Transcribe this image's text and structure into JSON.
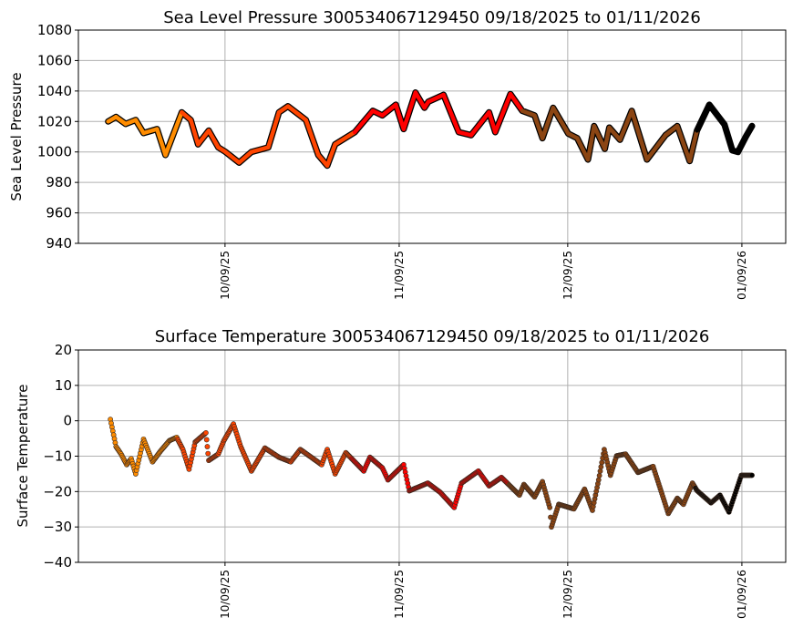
{
  "chart_data": [
    {
      "type": "line",
      "title": "Sea Level Pressure 300534067129450  09/18/2025 to 01/11/2026",
      "xlabel": "",
      "ylabel": "Sea Level Pressure",
      "x_units": "days since 09/18/2025",
      "xlim": [
        -5.1,
        120.8
      ],
      "ylim": [
        940,
        1080
      ],
      "yticks": [
        940,
        960,
        980,
        1000,
        1020,
        1040,
        1060,
        1080
      ],
      "xticks": [
        {
          "day": 21,
          "label": "10/09/25"
        },
        {
          "day": 52,
          "label": "11/09/25"
        },
        {
          "day": 82,
          "label": "12/09/25"
        },
        {
          "day": 113,
          "label": "01/09/26"
        }
      ],
      "grid": true,
      "color_segments": [
        {
          "until_day": 12.5,
          "color": "#ff8c00"
        },
        {
          "until_day": 43.5,
          "color": "#ff4500"
        },
        {
          "until_day": 73,
          "color": "#ff0000"
        },
        {
          "until_day": 104.7,
          "color": "#8b4513"
        },
        {
          "until_day": 999,
          "color": "#000000"
        }
      ],
      "points": [
        [
          0.2,
          1020
        ],
        [
          1.6,
          1023
        ],
        [
          3.3,
          1018.4
        ],
        [
          5.1,
          1021
        ],
        [
          6.5,
          1012.4
        ],
        [
          8.9,
          1015
        ],
        [
          10.4,
          998
        ],
        [
          13.3,
          1026
        ],
        [
          14.9,
          1021
        ],
        [
          16.2,
          1005
        ],
        [
          18.1,
          1014
        ],
        [
          19.8,
          1003
        ],
        [
          21.1,
          1000
        ],
        [
          23.5,
          993
        ],
        [
          25.7,
          1000
        ],
        [
          28.7,
          1003
        ],
        [
          30.6,
          1026
        ],
        [
          32.2,
          1030
        ],
        [
          35.4,
          1021
        ],
        [
          37.6,
          998
        ],
        [
          39.2,
          991
        ],
        [
          40.6,
          1005
        ],
        [
          44.1,
          1013
        ],
        [
          47.3,
          1027
        ],
        [
          49,
          1024
        ],
        [
          51.4,
          1031
        ],
        [
          52.8,
          1015
        ],
        [
          54.9,
          1039
        ],
        [
          56.5,
          1029
        ],
        [
          57.2,
          1033
        ],
        [
          59.9,
          1037.5
        ],
        [
          62.6,
          1013
        ],
        [
          64.8,
          1011
        ],
        [
          68,
          1026
        ],
        [
          69.1,
          1013
        ],
        [
          71.8,
          1038
        ],
        [
          73.9,
          1027
        ],
        [
          76.1,
          1024
        ],
        [
          77.5,
          1009
        ],
        [
          79.4,
          1029
        ],
        [
          82.1,
          1012
        ],
        [
          83.7,
          1009
        ],
        [
          85.6,
          995
        ],
        [
          86.7,
          1017
        ],
        [
          88.6,
          1002
        ],
        [
          89.4,
          1016
        ],
        [
          91.3,
          1008
        ],
        [
          93.4,
          1027
        ],
        [
          96.1,
          995
        ],
        [
          99.4,
          1011
        ],
        [
          101.5,
          1017
        ],
        [
          103.7,
          994
        ],
        [
          105,
          1014
        ],
        [
          107.2,
          1031
        ],
        [
          109.9,
          1018
        ],
        [
          111.3,
          1001
        ],
        [
          112.3,
          1000
        ],
        [
          113.7,
          1010
        ],
        [
          114.8,
          1017
        ]
      ]
    },
    {
      "type": "scatter",
      "title": "Surface Temperature 300534067129450  09/18/2025 to 01/11/2026",
      "xlabel": "",
      "ylabel": "Surface Temperature",
      "x_units": "days since 09/18/2025",
      "xlim": [
        -5.1,
        120.8
      ],
      "ylim": [
        -40,
        20
      ],
      "yticks": [
        -40,
        -30,
        -20,
        -10,
        0,
        10,
        20
      ],
      "ytick_labels": [
        "−40",
        "−30",
        "−20",
        "−10",
        "0",
        "10",
        "20"
      ],
      "xticks": [
        {
          "day": 21,
          "label": "10/09/25"
        },
        {
          "day": 52,
          "label": "11/09/25"
        },
        {
          "day": 82,
          "label": "12/09/25"
        },
        {
          "day": 113,
          "label": "01/09/26"
        }
      ],
      "grid": true,
      "color_segments": [
        {
          "until_day": 12.5,
          "color": "#ff8c00"
        },
        {
          "until_day": 43.5,
          "color": "#ff4500"
        },
        {
          "until_day": 71.5,
          "color": "#ff0000"
        },
        {
          "until_day": 104.7,
          "color": "#8b4513"
        },
        {
          "until_day": 999,
          "color": "#000000"
        }
      ],
      "points": [
        [
          0.6,
          0.4
        ],
        [
          1.6,
          -7.3
        ],
        [
          2.5,
          -9.4
        ],
        [
          3.5,
          -12.4
        ],
        [
          4.3,
          -10.7
        ],
        [
          5.1,
          -15
        ],
        [
          6.5,
          -5.2
        ],
        [
          8.1,
          -11.6
        ],
        [
          9.5,
          -8.6
        ],
        [
          11.1,
          -5.6
        ],
        [
          12.4,
          -4.7
        ],
        [
          13.5,
          -8.1
        ],
        [
          14.6,
          -13.7
        ],
        [
          15.7,
          -6
        ],
        [
          17.6,
          -3.4
        ],
        [
          18.1,
          -11.2
        ],
        [
          19.8,
          -9.4
        ],
        [
          20.8,
          -5.6
        ],
        [
          22.5,
          -0.9
        ],
        [
          23.8,
          -7.3
        ],
        [
          25.7,
          -14.2
        ],
        [
          28.1,
          -7.7
        ],
        [
          30.6,
          -10.3
        ],
        [
          32.7,
          -11.6
        ],
        [
          34.4,
          -8.1
        ],
        [
          38.2,
          -12.4
        ],
        [
          39.2,
          -8.1
        ],
        [
          40.6,
          -15
        ],
        [
          42.5,
          -9
        ],
        [
          45.7,
          -14.2
        ],
        [
          46.8,
          -10.3
        ],
        [
          49,
          -13.3
        ],
        [
          50,
          -16.7
        ],
        [
          52.8,
          -12.4
        ],
        [
          53.8,
          -19.8
        ],
        [
          57.1,
          -17.6
        ],
        [
          59.3,
          -20.2
        ],
        [
          61.8,
          -24.5
        ],
        [
          63.1,
          -17.6
        ],
        [
          66.1,
          -14.2
        ],
        [
          68,
          -18.4
        ],
        [
          70.2,
          -16
        ],
        [
          73.4,
          -21
        ],
        [
          74.2,
          -18
        ],
        [
          76.1,
          -21.5
        ],
        [
          77.5,
          -17.2
        ],
        [
          78.8,
          -24.5
        ],
        [
          79.1,
          -30
        ],
        [
          80.4,
          -23.6
        ],
        [
          83.1,
          -24.9
        ],
        [
          85,
          -19.3
        ],
        [
          86.4,
          -25.3
        ],
        [
          87.5,
          -16.7
        ],
        [
          88.5,
          -8.1
        ],
        [
          89.6,
          -15.4
        ],
        [
          90.7,
          -9.9
        ],
        [
          92.3,
          -9.4
        ],
        [
          94.5,
          -14.6
        ],
        [
          97.2,
          -12.9
        ],
        [
          99.9,
          -26.2
        ],
        [
          101.5,
          -21.9
        ],
        [
          102.6,
          -23.6
        ],
        [
          104.2,
          -17.6
        ],
        [
          105,
          -19.7
        ],
        [
          107.5,
          -23.2
        ],
        [
          109.1,
          -21
        ],
        [
          110.7,
          -25.8
        ],
        [
          112.9,
          -15.4
        ],
        [
          114.8,
          -15.4
        ]
      ]
    }
  ]
}
